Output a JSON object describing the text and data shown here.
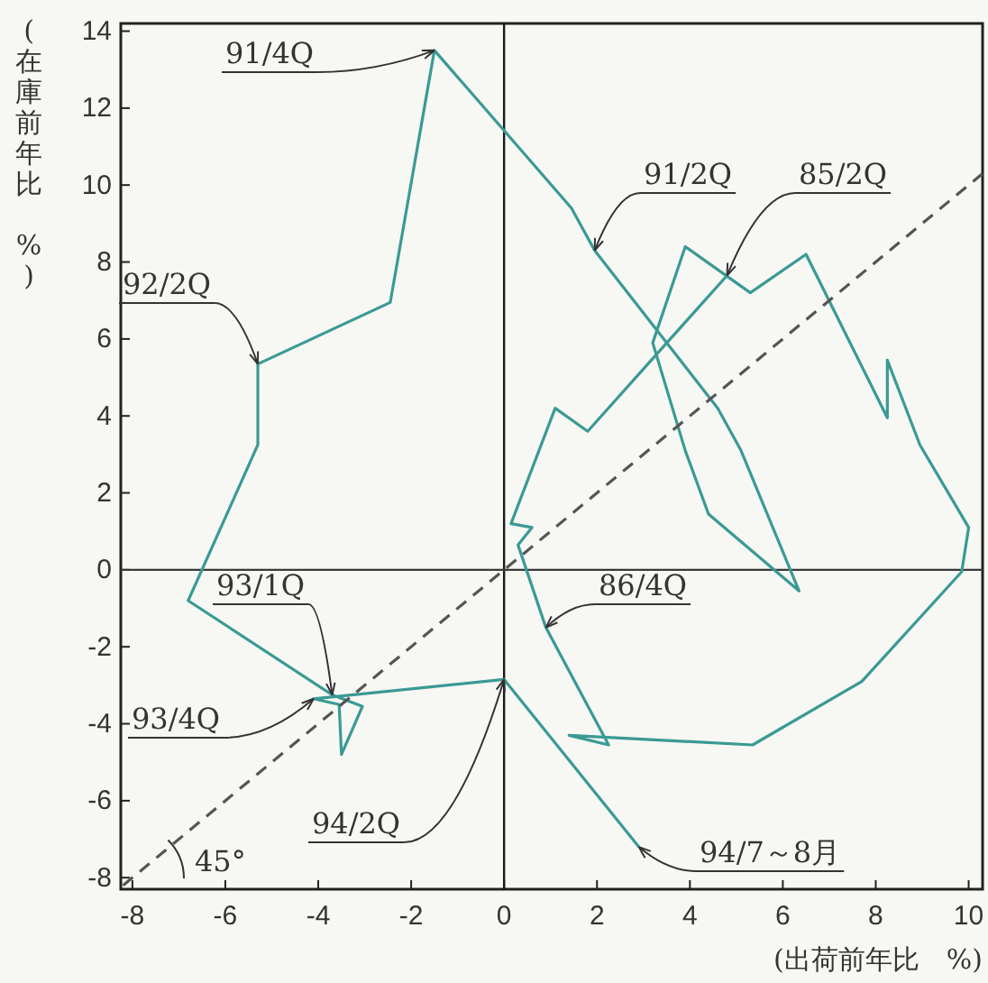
{
  "chart_data": {
    "type": "line",
    "xlabel": "(出荷前年比　%)",
    "ylabel": "(在庫前年比　%)",
    "xlim": [
      -8.25,
      10.3
    ],
    "ylim": [
      -8.3,
      14.2
    ],
    "xticks": [
      -8,
      -6,
      -4,
      -2,
      0,
      2,
      4,
      6,
      8,
      10
    ],
    "yticks": [
      -8,
      -6,
      -4,
      -2,
      0,
      2,
      4,
      6,
      8,
      10,
      12,
      14
    ],
    "grid": false,
    "marker": "none",
    "ref_lines": [
      {
        "axis": "x",
        "value": 0,
        "color": "#1a1a1a"
      },
      {
        "axis": "y",
        "value": 0,
        "color": "#3a3a3a"
      }
    ],
    "series": [
      {
        "color": "#3a9a94",
        "line_style": "solid",
        "x": [
          4.8,
          1.8,
          1.1,
          0.15,
          0.6,
          0.3,
          0.9,
          2.25,
          1.4,
          5.35,
          7.7,
          9.85,
          10,
          8.95,
          8.25,
          8.25,
          6.5,
          5.3,
          3.9,
          3.2,
          3.9,
          4.4,
          6.35,
          5.1,
          4.6,
          1.95,
          1.45,
          -1.5,
          -2.45,
          -5.3,
          -5.3,
          -6.8,
          -3.7,
          -3.05,
          -3.5,
          -3.55,
          -4.1,
          0,
          2.9
        ],
        "values": [
          7.65,
          3.6,
          4.2,
          1.2,
          1.1,
          0.65,
          -1.5,
          -4.55,
          -4.3,
          -4.55,
          -2.9,
          -0.05,
          1.1,
          3.25,
          5.45,
          3.95,
          8.2,
          7.2,
          8.4,
          5.9,
          3.1,
          1.45,
          -0.55,
          3.1,
          4.2,
          8.3,
          9.4,
          13.5,
          6.95,
          5.35,
          3.25,
          -0.8,
          -3.25,
          -3.55,
          -4.8,
          -3.5,
          -3.35,
          -2.85,
          -7.2
        ]
      },
      {
        "color": "#555555",
        "line_style": "dashed",
        "x": [
          -8.2,
          10.3
        ],
        "values": [
          -8.2,
          10.3
        ]
      }
    ],
    "annotations": [
      {
        "text": "91/4Q",
        "x": -1.5,
        "y": 13.5
      },
      {
        "text": "91/2Q",
        "x": 1.95,
        "y": 8.3
      },
      {
        "text": "85/2Q",
        "x": 4.8,
        "y": 7.65
      },
      {
        "text": "92/2Q",
        "x": -5.3,
        "y": 5.35
      },
      {
        "text": "86/4Q",
        "x": 0.9,
        "y": -1.5
      },
      {
        "text": "93/1Q",
        "x": -3.7,
        "y": -3.25
      },
      {
        "text": "93/4Q",
        "x": -4.1,
        "y": -3.35
      },
      {
        "text": "94/2Q",
        "x": 0,
        "y": -2.85
      },
      {
        "text": "94/7～8月",
        "x": 2.9,
        "y": -7.2
      },
      "45°"
    ]
  }
}
